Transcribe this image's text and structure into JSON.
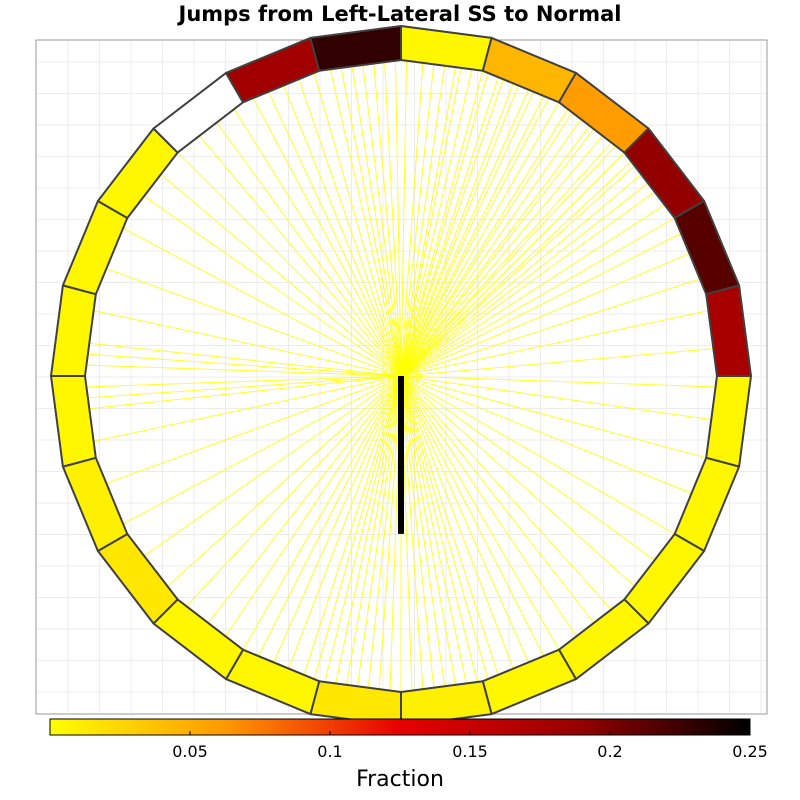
{
  "chart_data": {
    "type": "radial-segment-plot",
    "title": "Jumps from Left-Lateral SS to Normal",
    "segment_count": 24,
    "segment_fraction": [
      0.005,
      0.045,
      0.06,
      0.19,
      0.215,
      0.175,
      0.005,
      0.005,
      0.005,
      0.005,
      0.005,
      0.01,
      0.015,
      0.005,
      0.005,
      0.015,
      0.01,
      0.005,
      0.005,
      0.005,
      0.005,
      0.0,
      0.18,
      0.23
    ],
    "segment_missing": [
      false,
      false,
      false,
      false,
      false,
      false,
      false,
      false,
      false,
      false,
      false,
      false,
      false,
      false,
      false,
      false,
      false,
      false,
      false,
      false,
      false,
      true,
      false,
      false
    ],
    "jump_line_angles_deg": [
      89,
      86,
      84,
      82,
      80,
      79,
      77,
      75,
      74,
      72,
      71,
      69,
      68,
      66,
      65,
      63,
      62,
      60,
      58,
      57,
      55,
      53,
      52,
      50,
      48,
      47,
      45,
      43,
      42,
      40,
      38,
      36,
      33,
      30,
      27,
      23,
      18,
      12,
      5,
      -2,
      -8,
      -15,
      -22,
      -30,
      -36,
      -42,
      -48,
      -52,
      -56,
      -60,
      -63,
      -66,
      -69,
      -72,
      -74,
      -76,
      -78,
      -80,
      -82,
      -84,
      -86,
      -88,
      -90,
      -92,
      -94,
      -96,
      -98,
      -100,
      -102,
      -104,
      -106,
      -108,
      -111,
      -114,
      -117,
      -120,
      -124,
      -128,
      -133,
      -138,
      -145,
      -152,
      -160,
      -168,
      -174,
      -176,
      -178,
      178,
      176,
      174,
      168,
      160,
      152,
      145,
      140,
      135,
      130,
      126,
      122,
      118,
      115,
      112,
      109,
      106,
      103,
      101,
      99,
      97,
      95,
      93,
      91
    ],
    "center_bar": {
      "direction_deg": -90,
      "length_fraction_of_radius": 0.47
    },
    "colorbar": {
      "label": "Fraction",
      "min": 0,
      "max": 0.25,
      "ticks": [
        0.05,
        0.1,
        0.15,
        0.2,
        0.25
      ],
      "tick_labels": [
        "0.05",
        "0.1",
        "0.15",
        "0.2",
        "0.25"
      ],
      "colormap": [
        "#ffff00",
        "#ff9900",
        "#e60000",
        "#990000",
        "#000000"
      ]
    },
    "grid": true,
    "segment_outline_color": "#404040",
    "line_color": "#ffff00",
    "missing_color": "#ffffff"
  }
}
